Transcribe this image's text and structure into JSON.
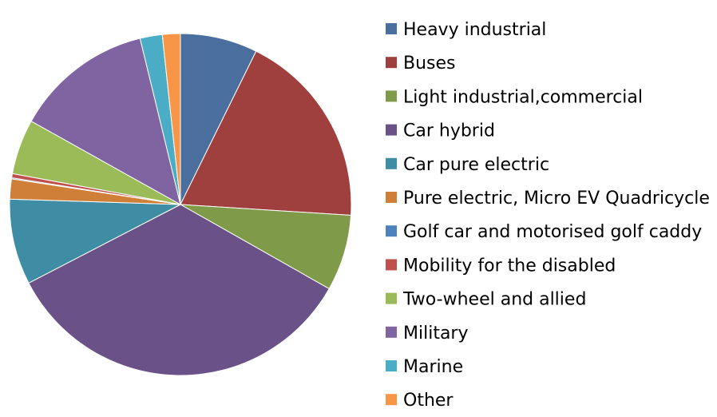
{
  "chart_data": {
    "type": "pie",
    "title": "",
    "legend_position": "right",
    "slices": [
      {
        "label": "Heavy industrial",
        "value": 7.3,
        "color": "#4A6F9F"
      },
      {
        "label": "Buses",
        "value": 18.7,
        "color": "#A0403E"
      },
      {
        "label": "Light industrial,commercial",
        "value": 7.2,
        "color": "#7F9A48"
      },
      {
        "label": "Car hybrid",
        "value": 34.2,
        "color": "#6A5289"
      },
      {
        "label": "Car pure electric",
        "value": 8.1,
        "color": "#3E8DA4"
      },
      {
        "label": "Pure electric, Micro EV Quadricycle",
        "value": 1.9,
        "color": "#D07F38"
      },
      {
        "label": "Golf car and motorised golf caddy",
        "value": 0.1,
        "color": "#4F81BD"
      },
      {
        "label": "Mobility for the disabled",
        "value": 0.4,
        "color": "#C0504D"
      },
      {
        "label": "Two-wheel and allied",
        "value": 5.2,
        "color": "#9BBB59"
      },
      {
        "label": "Military",
        "value": 13.1,
        "color": "#8064A2"
      },
      {
        "label": "Marine",
        "value": 2.1,
        "color": "#4BACC6"
      },
      {
        "label": "Other",
        "value": 1.7,
        "color": "#F79646"
      }
    ]
  }
}
